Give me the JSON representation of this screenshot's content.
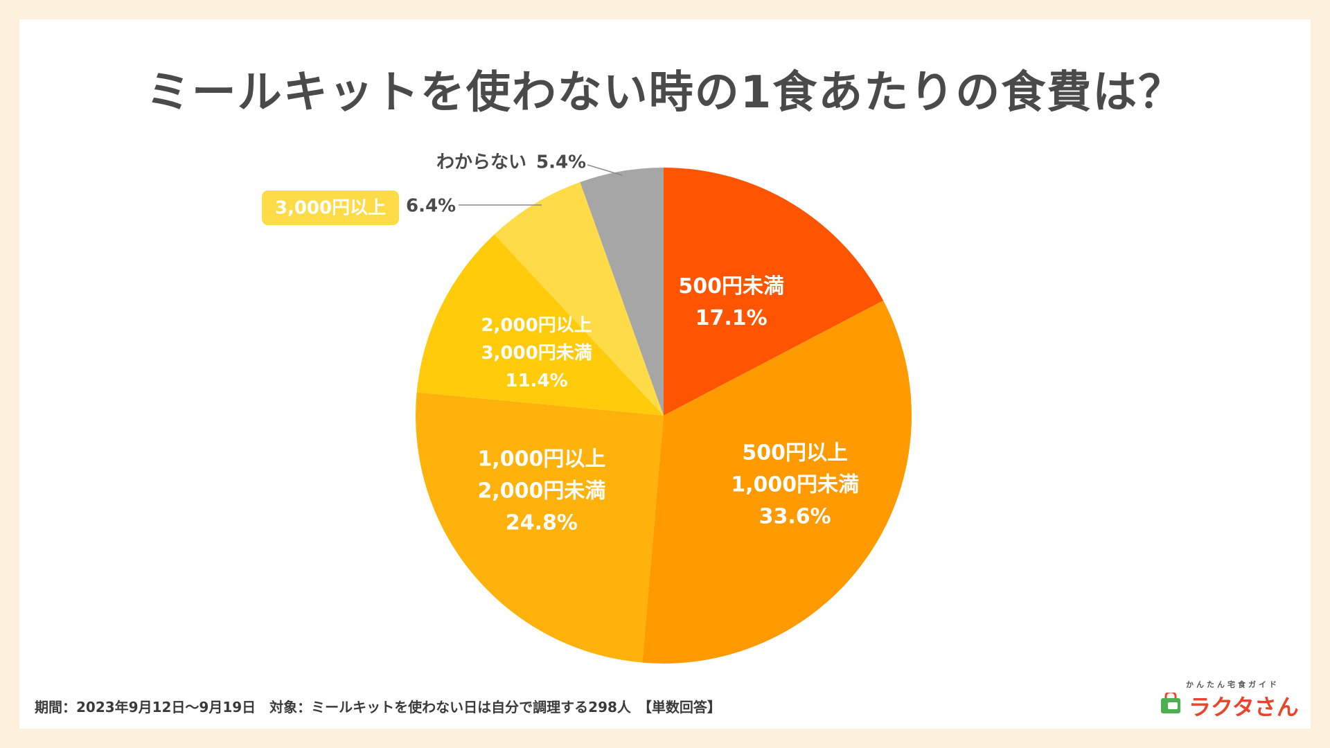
{
  "title": "ミールキットを使わない時の1食あたりの食費は？",
  "footnote": "期間：2023年9月12日〜9月19日　対象：ミールキットを使わない日は自分で調理する298人　【単数回答】",
  "logo": {
    "subtitle": "かんたん宅食ガイド",
    "name": "ラクタさん"
  },
  "chart_data": {
    "type": "pie",
    "title": "ミールキットを使わない時の1食あたりの食費は？",
    "start": "12 o'clock",
    "direction": "clockwise",
    "slices": [
      {
        "label_lines": [
          "500円未満"
        ],
        "percent_text": "17.1%",
        "value": 17.1,
        "color": "#ff5500",
        "label_position": "inside"
      },
      {
        "label_lines": [
          "500円以上",
          "1,000円未満"
        ],
        "percent_text": "33.6%",
        "value": 33.6,
        "color": "#ff9a00",
        "label_position": "inside"
      },
      {
        "label_lines": [
          "1,000円以上",
          "2,000円未満"
        ],
        "percent_text": "24.8%",
        "value": 24.8,
        "color": "#ffb20b",
        "label_position": "inside"
      },
      {
        "label_lines": [
          "2,000円以上",
          "3,000円未満"
        ],
        "percent_text": "11.4%",
        "value": 11.4,
        "color": "#ffcb0a",
        "label_position": "inside"
      },
      {
        "label_lines": [
          "3,000円以上"
        ],
        "percent_text": "6.4%",
        "value": 6.4,
        "color": "#ffdc47",
        "label_position": "outside-badge"
      },
      {
        "label_lines": [
          "わからない"
        ],
        "percent_text": "5.4%",
        "value": 5.4,
        "color": "#a6a6a6",
        "label_position": "outside"
      }
    ],
    "label_text_color": "#ffffff",
    "outside_text_color": "#4a4a4a",
    "legend": "none"
  }
}
